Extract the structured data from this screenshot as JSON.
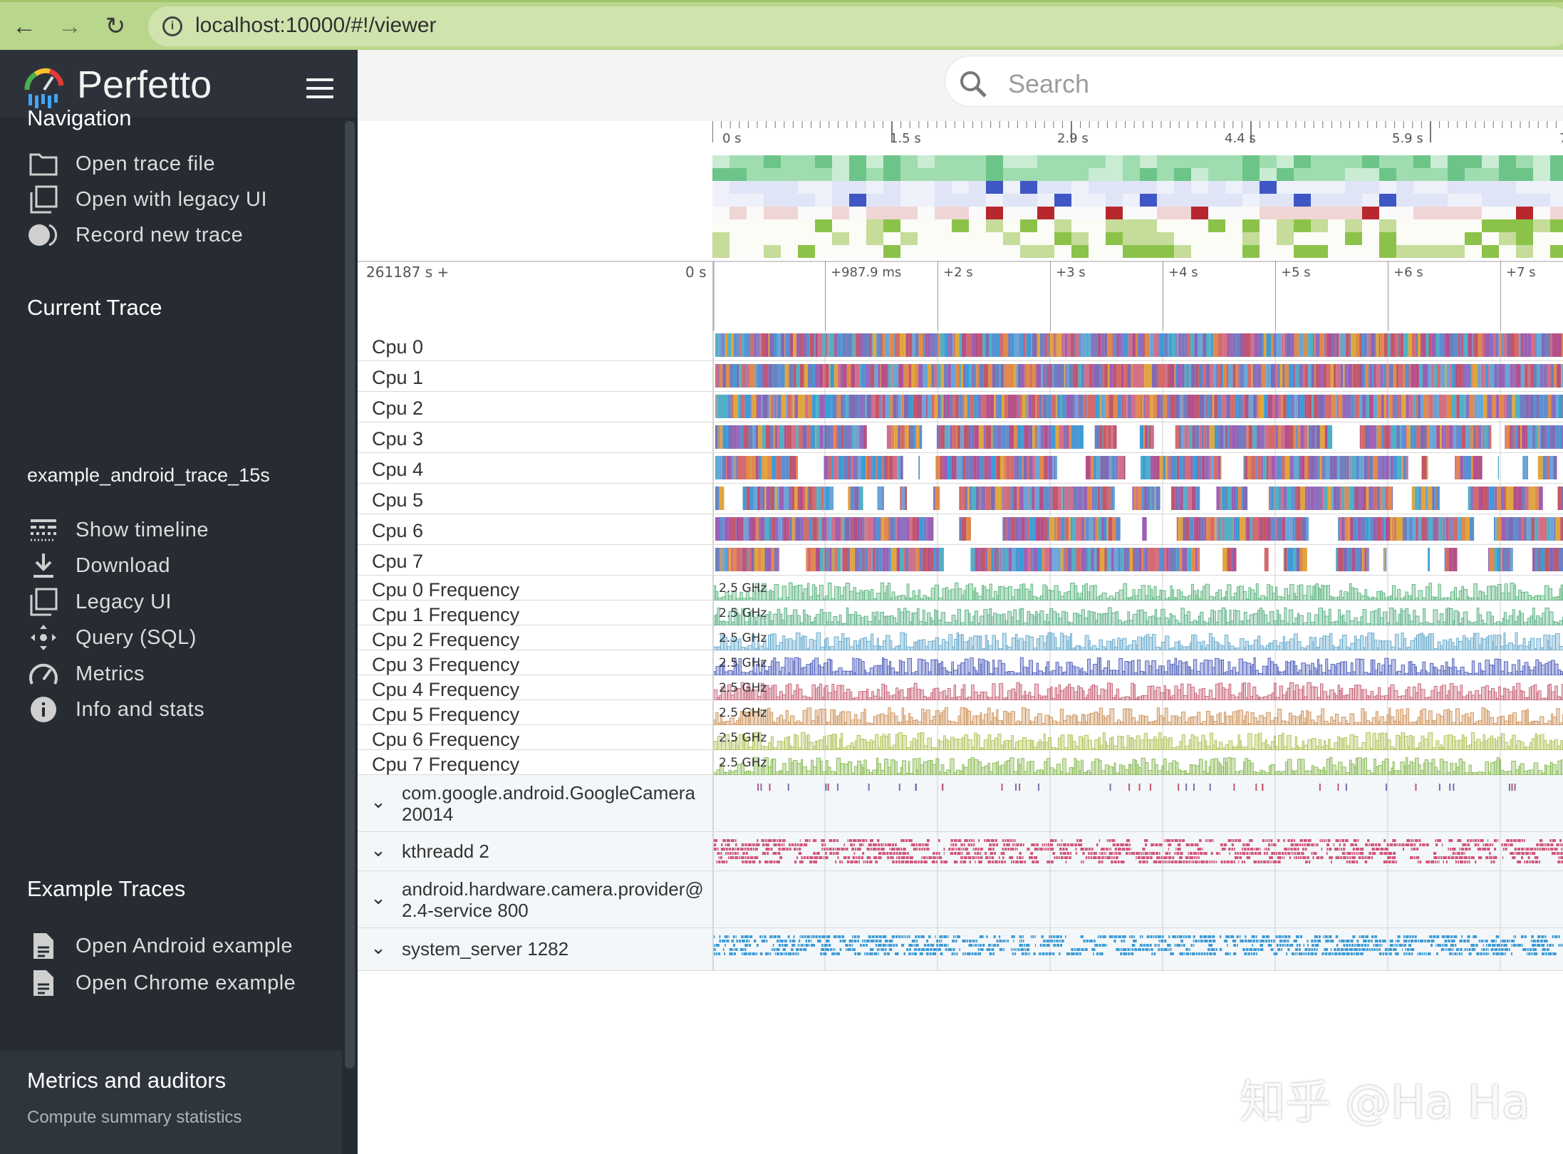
{
  "browser": {
    "url": "localhost:10000/#!/viewer",
    "back_icon": "arrow-left-icon",
    "forward_icon": "arrow-right-icon",
    "reload_icon": "reload-icon"
  },
  "app": {
    "name": "Perfetto",
    "search_placeholder": "Search"
  },
  "sidebar": {
    "navigation": {
      "title": "Navigation",
      "items": [
        {
          "label": "Open trace file",
          "icon": "folder-icon"
        },
        {
          "label": "Open with legacy UI",
          "icon": "filter-none-icon"
        },
        {
          "label": "Record new trace",
          "icon": "fiber-smart-record-icon"
        }
      ]
    },
    "current_trace": {
      "title": "Current Trace",
      "trace_name": "example_android_trace_15s",
      "items": [
        {
          "label": "Show timeline",
          "icon": "line-style-icon"
        },
        {
          "label": "Download",
          "icon": "download-icon"
        },
        {
          "label": "Legacy UI",
          "icon": "filter-none-icon"
        },
        {
          "label": "Query (SQL)",
          "icon": "control-camera-icon"
        },
        {
          "label": "Metrics",
          "icon": "speed-icon"
        },
        {
          "label": "Info and stats",
          "icon": "info-icon"
        }
      ]
    },
    "example_traces": {
      "title": "Example Traces",
      "items": [
        {
          "label": "Open Android example",
          "icon": "description-icon"
        },
        {
          "label": "Open Chrome example",
          "icon": "description-icon"
        }
      ]
    },
    "footer": {
      "title": "Metrics and auditors",
      "subtitle": "Compute summary statistics"
    }
  },
  "overview_ticks": [
    "0 s",
    "1.5 s",
    "2.9 s",
    "4.4 s",
    "5.9 s",
    "7"
  ],
  "time_axis": {
    "offset_label": "261187 s +",
    "zero_label": "0 s",
    "ticks": [
      "+987.9 ms",
      "+2 s",
      "+3 s",
      "+4 s",
      "+5 s",
      "+6 s",
      "+7 s"
    ]
  },
  "cpu_tracks": [
    "Cpu 0",
    "Cpu 1",
    "Cpu 2",
    "Cpu 3",
    "Cpu 4",
    "Cpu 5",
    "Cpu 6",
    "Cpu 7"
  ],
  "freq_tracks": [
    {
      "label": "Cpu 0 Frequency",
      "value": "2.5 GHz",
      "color": "#4caf72"
    },
    {
      "label": "Cpu 1 Frequency",
      "value": "2.5 GHz",
      "color": "#4aa97a"
    },
    {
      "label": "Cpu 2 Frequency",
      "value": "2.5 GHz",
      "color": "#5aa3c9"
    },
    {
      "label": "Cpu 3 Frequency",
      "value": "2.5 GHz",
      "color": "#3f51b5"
    },
    {
      "label": "Cpu 4 Frequency",
      "value": "2.5 GHz",
      "color": "#c2566a"
    },
    {
      "label": "Cpu 5 Frequency",
      "value": "2.5 GHz",
      "color": "#c98a4c"
    },
    {
      "label": "Cpu 6 Frequency",
      "value": "2.5 GHz",
      "color": "#a9bd45"
    },
    {
      "label": "Cpu 7 Frequency",
      "value": "2.5 GHz",
      "color": "#7cb342"
    }
  ],
  "process_tracks": [
    {
      "line1": "com.google.android.GoogleCamera",
      "line2": "20014"
    },
    {
      "line1": "kthreadd 2",
      "line2": ""
    },
    {
      "line1": "android.hardware.camera.provider@",
      "line2": "2.4-service 800"
    },
    {
      "line1": "system_server 1282",
      "line2": ""
    }
  ],
  "watermark": "知乎 @Ha Ha"
}
